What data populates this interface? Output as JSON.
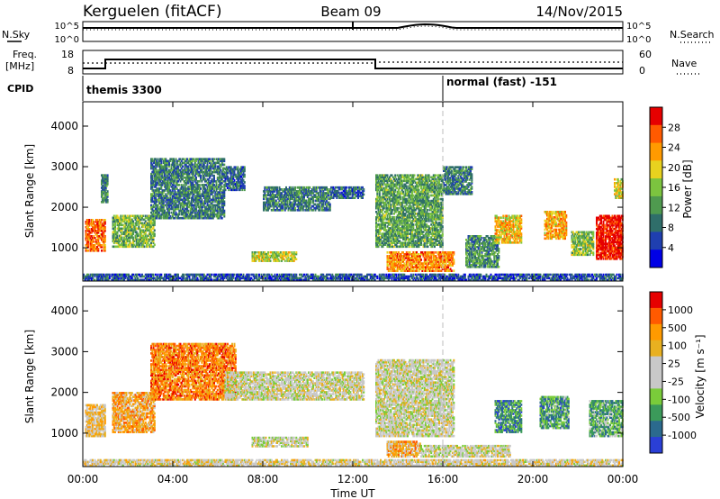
{
  "header": {
    "station": "Kerguelen (fitACF)",
    "beam": "Beam 09",
    "date": "14/Nov/2015"
  },
  "panels": {
    "nsky": {
      "left_label": "N.Sky",
      "right_label": "N.Search",
      "left_ticks": [
        "10^5",
        "10^0"
      ],
      "right_ticks": [
        "10^5",
        "10^0"
      ]
    },
    "freq": {
      "left_label_line1": "Freq.",
      "left_label_line2": "[MHz]",
      "right_label": "Nave",
      "left_ticks": [
        "18",
        "8"
      ],
      "right_ticks": [
        "60",
        "0"
      ]
    },
    "cpid": {
      "label": "CPID",
      "segments": [
        {
          "text": "themis 3300",
          "start_hour": 0
        },
        {
          "text": "normal (fast) -151",
          "start_hour": 16
        }
      ]
    }
  },
  "colors": {
    "power_scale": [
      "#0000e6",
      "#1f3fb0",
      "#2f6e6a",
      "#4f9a4f",
      "#7cc43f",
      "#e8d21f",
      "#ff9a00",
      "#ff5a00",
      "#e60000"
    ],
    "velocity_scale": [
      "#2a3fd6",
      "#2b6a8e",
      "#3b9a5a",
      "#7acc3a",
      "#c8c8c8",
      "#c8c8c8",
      "#e8b020",
      "#ff9a00",
      "#ff5a00",
      "#e60000"
    ],
    "marker_line": "#bdbdbd"
  },
  "chart_data": [
    {
      "type": "heatmap",
      "title": "Power",
      "xlabel": "Time UT",
      "ylabel": "Slant Range [km]",
      "x_range_hours": [
        0,
        24
      ],
      "y_range_km": [
        180,
        4600
      ],
      "x_ticks": [
        "00:00",
        "04:00",
        "08:00",
        "12:00",
        "16:00",
        "20:00",
        "00:00"
      ],
      "y_ticks": [
        "1000",
        "2000",
        "3000",
        "4000"
      ],
      "y_tick_values": [
        1000,
        2000,
        3000,
        4000
      ],
      "colorbar": {
        "label": "Power [dB]",
        "ticks": [
          "28",
          "24",
          "20",
          "16",
          "12",
          "8",
          "4"
        ],
        "range": [
          0,
          30
        ]
      },
      "regions": [
        {
          "t0": 0.1,
          "t1": 1.0,
          "r0": 900,
          "r1": 1700,
          "level": 0.8
        },
        {
          "t0": 0.8,
          "t1": 1.1,
          "r0": 2100,
          "r1": 2800,
          "level": 0.3
        },
        {
          "t0": 1.3,
          "t1": 3.2,
          "r0": 1000,
          "r1": 1800,
          "level": 0.45
        },
        {
          "t0": 3.0,
          "t1": 6.3,
          "r0": 1700,
          "r1": 3200,
          "level": 0.3
        },
        {
          "t0": 6.3,
          "t1": 7.2,
          "r0": 2400,
          "r1": 3000,
          "level": 0.25
        },
        {
          "t0": 7.5,
          "t1": 9.5,
          "r0": 650,
          "r1": 900,
          "level": 0.55
        },
        {
          "t0": 8.0,
          "t1": 11.0,
          "r0": 1900,
          "r1": 2500,
          "level": 0.3
        },
        {
          "t0": 11.0,
          "t1": 12.5,
          "r0": 2200,
          "r1": 2500,
          "level": 0.25
        },
        {
          "t0": 13.0,
          "t1": 16.0,
          "r0": 1000,
          "r1": 2800,
          "level": 0.4
        },
        {
          "t0": 13.5,
          "t1": 16.5,
          "r0": 400,
          "r1": 900,
          "level": 0.75
        },
        {
          "t0": 16.0,
          "t1": 17.3,
          "r0": 2300,
          "r1": 3000,
          "level": 0.3
        },
        {
          "t0": 17.0,
          "t1": 18.5,
          "r0": 500,
          "r1": 1300,
          "level": 0.35
        },
        {
          "t0": 18.3,
          "t1": 19.5,
          "r0": 1100,
          "r1": 1800,
          "level": 0.65
        },
        {
          "t0": 20.5,
          "t1": 21.5,
          "r0": 1200,
          "r1": 1900,
          "level": 0.7
        },
        {
          "t0": 21.7,
          "t1": 22.7,
          "r0": 800,
          "r1": 1400,
          "level": 0.5
        },
        {
          "t0": 22.8,
          "t1": 24.0,
          "r0": 700,
          "r1": 1800,
          "level": 0.95
        },
        {
          "t0": 23.6,
          "t1": 24.0,
          "r0": 2200,
          "r1": 2700,
          "level": 0.6
        },
        {
          "t0": 0.0,
          "t1": 24.0,
          "r0": 180,
          "r1": 350,
          "level": 0.2
        }
      ]
    },
    {
      "type": "heatmap",
      "title": "Velocity",
      "xlabel": "Time UT",
      "ylabel": "Slant Range [km]",
      "x_range_hours": [
        0,
        24
      ],
      "y_range_km": [
        180,
        4600
      ],
      "x_ticks": [
        "00:00",
        "04:00",
        "08:00",
        "12:00",
        "16:00",
        "20:00",
        "00:00"
      ],
      "y_ticks": [
        "1000",
        "2000",
        "3000",
        "4000"
      ],
      "y_tick_values": [
        1000,
        2000,
        3000,
        4000
      ],
      "colorbar": {
        "label": "Velocity [m s⁻¹]",
        "ticks": [
          "1000",
          "500",
          "100",
          "25",
          "-25",
          "-100",
          "-500",
          "-1000"
        ],
        "range": [
          -1000,
          1000
        ]
      },
      "regions": [
        {
          "t0": 0.1,
          "t1": 1.0,
          "r0": 900,
          "r1": 1700,
          "level": 0.62
        },
        {
          "t0": 1.3,
          "t1": 3.2,
          "r0": 1000,
          "r1": 2000,
          "level": 0.7
        },
        {
          "t0": 3.0,
          "t1": 6.8,
          "r0": 1800,
          "r1": 3200,
          "level": 0.78
        },
        {
          "t0": 6.3,
          "t1": 12.5,
          "r0": 1800,
          "r1": 2500,
          "level": 0.5
        },
        {
          "t0": 7.5,
          "t1": 10.0,
          "r0": 650,
          "r1": 900,
          "level": 0.5
        },
        {
          "t0": 13.0,
          "t1": 16.5,
          "r0": 900,
          "r1": 2800,
          "level": 0.5
        },
        {
          "t0": 13.5,
          "t1": 15.0,
          "r0": 400,
          "r1": 800,
          "level": 0.68
        },
        {
          "t0": 15.0,
          "t1": 19.0,
          "r0": 400,
          "r1": 700,
          "level": 0.5
        },
        {
          "t0": 18.3,
          "t1": 19.5,
          "r0": 1000,
          "r1": 1800,
          "level": 0.22
        },
        {
          "t0": 20.3,
          "t1": 21.6,
          "r0": 1100,
          "r1": 1900,
          "level": 0.25
        },
        {
          "t0": 22.5,
          "t1": 24.0,
          "r0": 900,
          "r1": 1800,
          "level": 0.28
        },
        {
          "t0": 0.0,
          "t1": 24.0,
          "r0": 180,
          "r1": 350,
          "level": 0.55
        }
      ]
    }
  ]
}
